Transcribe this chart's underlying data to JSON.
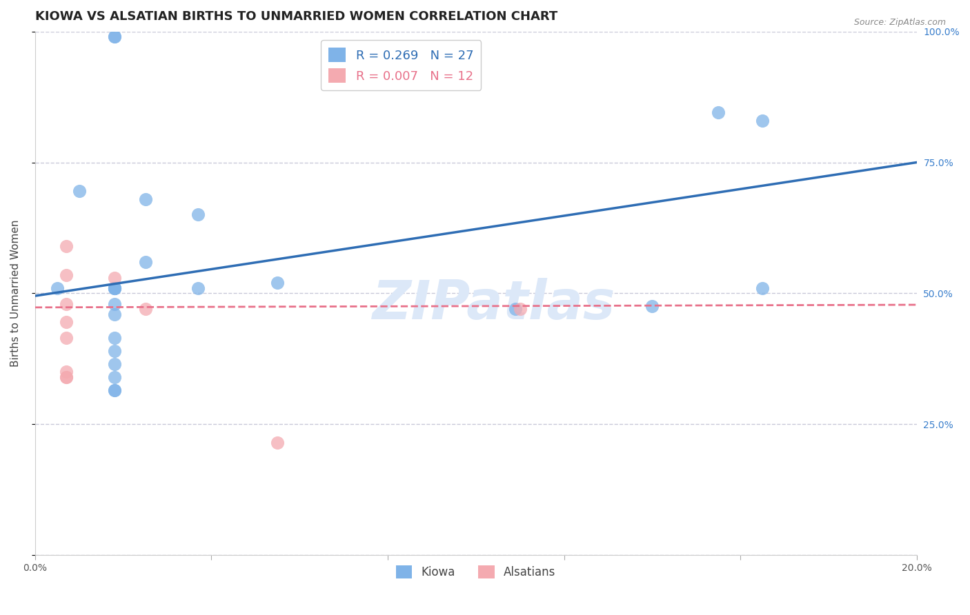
{
  "title": "KIOWA VS ALSATIAN BIRTHS TO UNMARRIED WOMEN CORRELATION CHART",
  "source": "Source: ZipAtlas.com",
  "ylabel": "Births to Unmarried Women",
  "xlim": [
    0.0,
    0.2
  ],
  "ylim": [
    0.0,
    1.0
  ],
  "yticks": [
    0.0,
    0.25,
    0.5,
    0.75,
    1.0
  ],
  "ytick_labels": [
    "",
    "25.0%",
    "50.0%",
    "75.0%",
    "100.0%"
  ],
  "xticks": [
    0.0,
    0.04,
    0.08,
    0.12,
    0.16,
    0.2
  ],
  "xtick_labels": [
    "0.0%",
    "",
    "",
    "",
    "",
    "20.0%"
  ],
  "kiowa_R": 0.269,
  "kiowa_N": 27,
  "alsatian_R": 0.007,
  "alsatian_N": 12,
  "kiowa_x": [
    0.005,
    0.01,
    0.018,
    0.018,
    0.018,
    0.018,
    0.018,
    0.018,
    0.018,
    0.018,
    0.018,
    0.018,
    0.018,
    0.018,
    0.018,
    0.025,
    0.025,
    0.037,
    0.037,
    0.055,
    0.109,
    0.14,
    0.155,
    0.165,
    0.165,
    0.018,
    0.018
  ],
  "kiowa_y": [
    0.51,
    0.695,
    0.51,
    0.51,
    0.48,
    0.46,
    0.415,
    0.39,
    0.365,
    0.34,
    0.315,
    0.315,
    0.51,
    0.51,
    0.51,
    0.68,
    0.56,
    0.65,
    0.51,
    0.52,
    0.47,
    0.475,
    0.845,
    0.83,
    0.51,
    0.99,
    0.99
  ],
  "alsatian_x": [
    0.007,
    0.007,
    0.007,
    0.007,
    0.007,
    0.007,
    0.007,
    0.007,
    0.018,
    0.025,
    0.055,
    0.11
  ],
  "alsatian_y": [
    0.59,
    0.535,
    0.48,
    0.445,
    0.415,
    0.35,
    0.34,
    0.34,
    0.53,
    0.47,
    0.215,
    0.47
  ],
  "kiowa_color": "#7fb3e8",
  "alsatian_color": "#f4aab0",
  "kiowa_line_color": "#2e6db4",
  "alsatian_line_color": "#e8718a",
  "background_color": "#ffffff",
  "grid_color": "#c8c8d8",
  "watermark_color": "#dce8f8",
  "title_fontsize": 13,
  "axis_label_fontsize": 11,
  "tick_fontsize": 10,
  "legend_fontsize": 13,
  "blue_line_y0": 0.495,
  "blue_line_y1": 0.75,
  "pink_line_y0": 0.473,
  "pink_line_y1": 0.478
}
